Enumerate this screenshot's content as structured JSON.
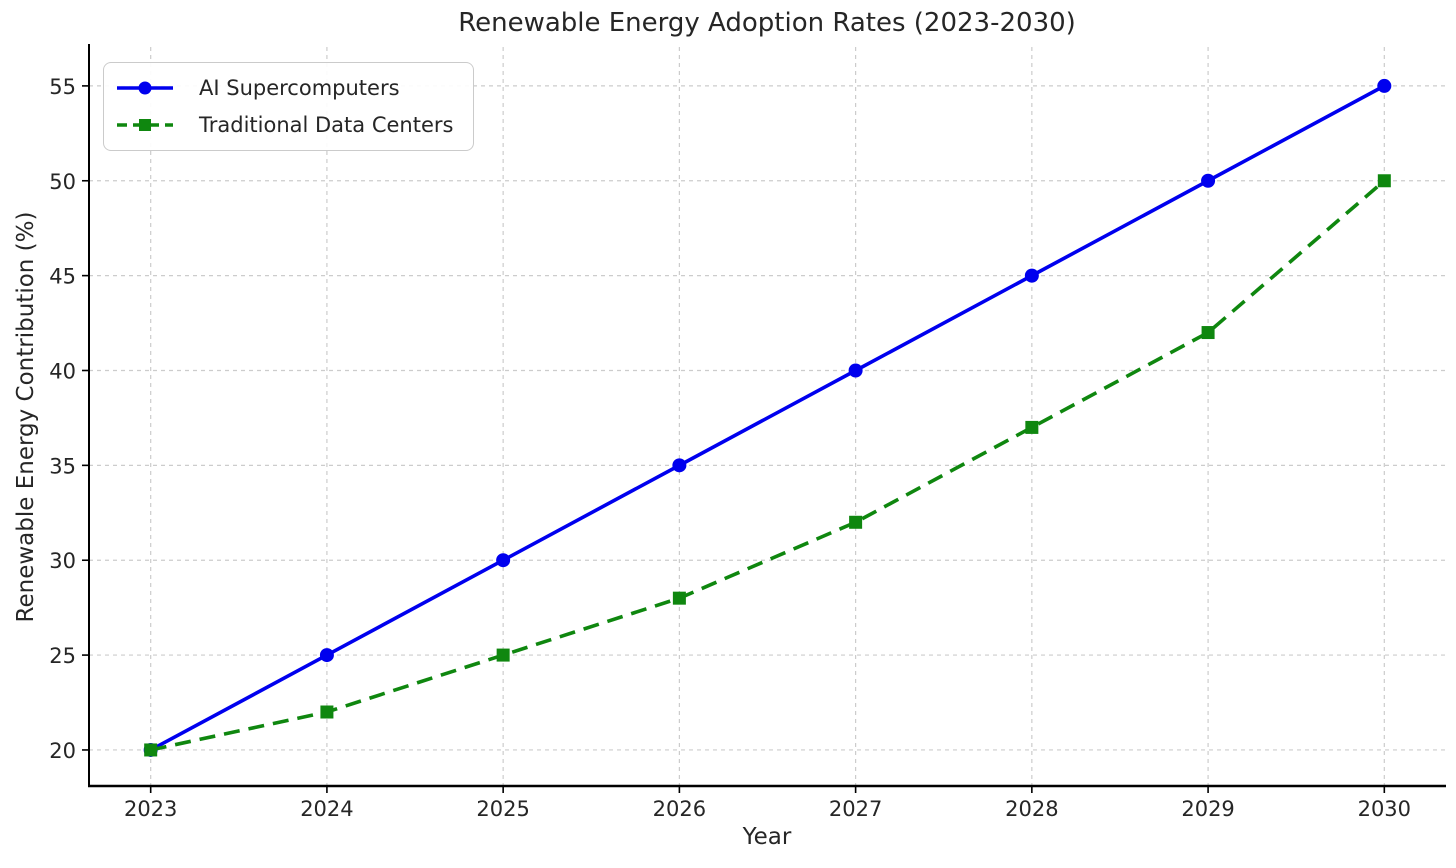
{
  "chart_data": {
    "type": "line",
    "title": "Renewable Energy Adoption Rates (2023-2030)",
    "xlabel": "Year",
    "ylabel": "Renewable Energy Contribution (%)",
    "x": [
      2023,
      2024,
      2025,
      2026,
      2027,
      2028,
      2029,
      2030
    ],
    "series": [
      {
        "name": "AI Supercomputers",
        "values": [
          20,
          25,
          30,
          35,
          40,
          45,
          50,
          55
        ],
        "color": "#0000ee",
        "line_style": "solid",
        "marker": "circle"
      },
      {
        "name": "Traditional Data Centers",
        "values": [
          20,
          22,
          25,
          28,
          32,
          37,
          42,
          50
        ],
        "color": "#0f870f",
        "line_style": "dashed",
        "marker": "square"
      }
    ],
    "yticks": [
      20,
      25,
      30,
      35,
      40,
      45,
      50,
      55
    ],
    "xlim": [
      2022.65,
      2030.35
    ],
    "ylim": [
      18.1,
      57.05
    ],
    "grid": true,
    "grid_color": "#cccccc",
    "axis_color": "#000000",
    "text_color": "#262626",
    "legend_position": "upper-left"
  }
}
